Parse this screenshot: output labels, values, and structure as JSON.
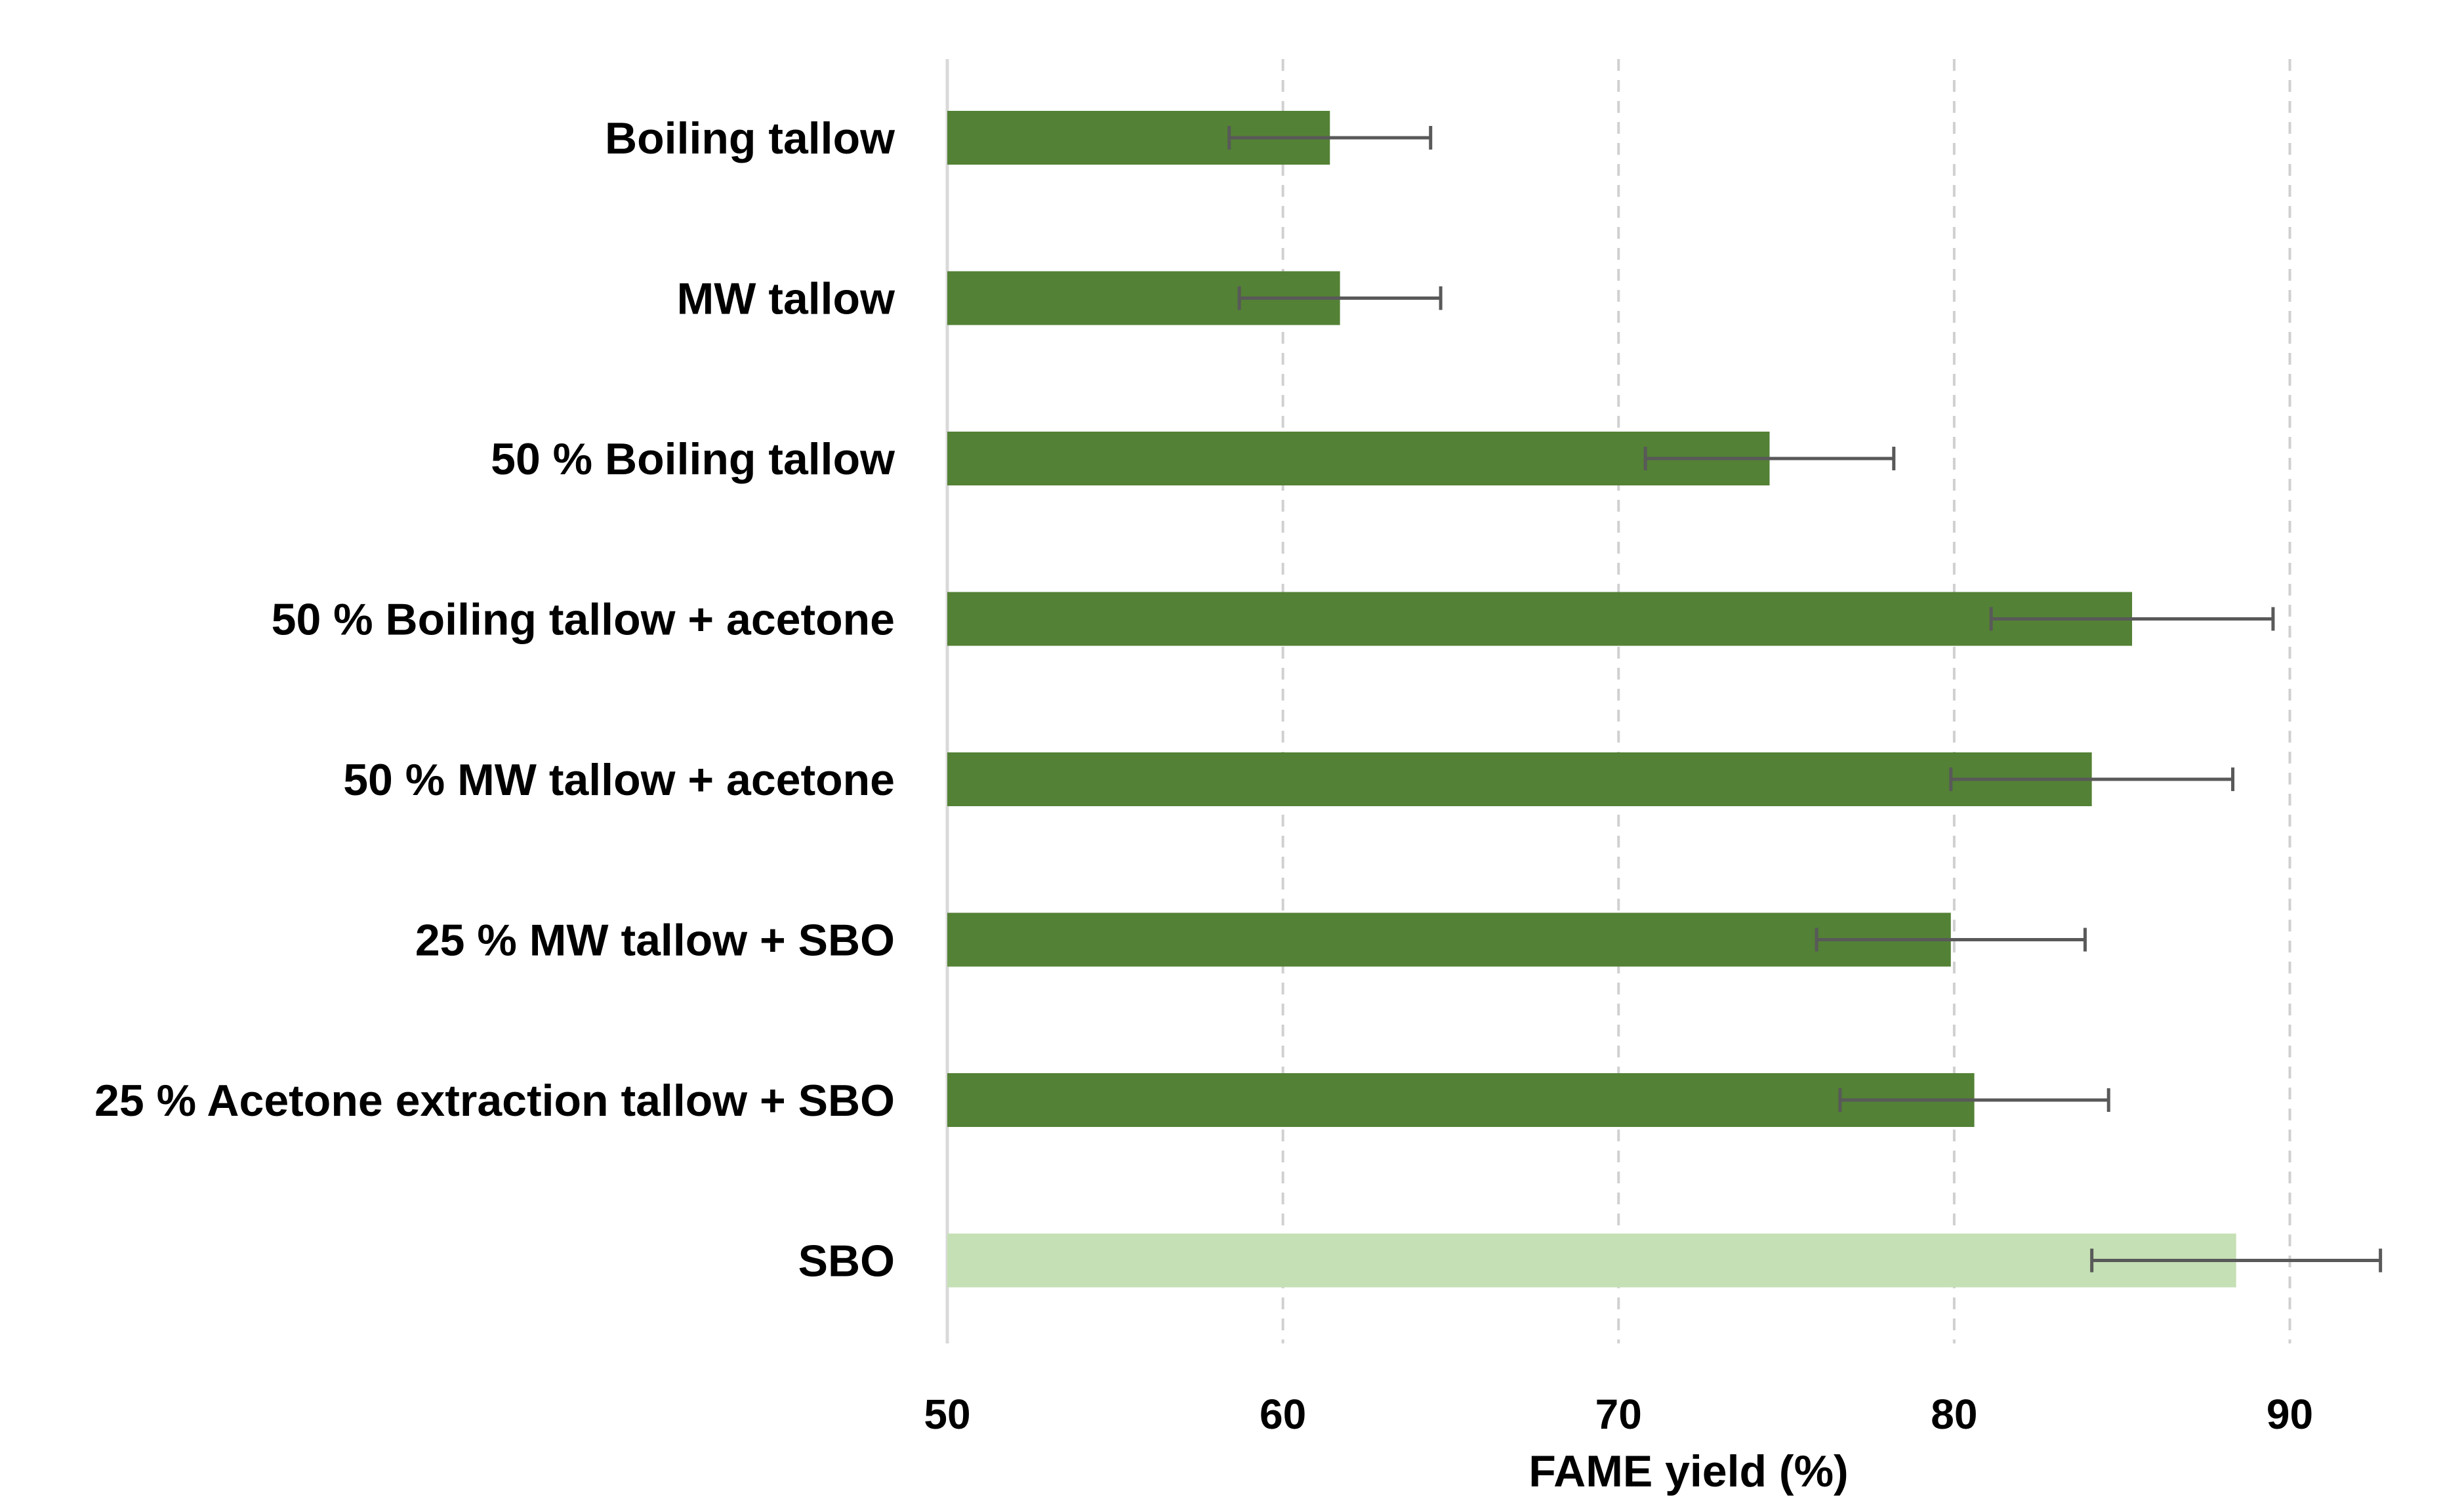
{
  "chart_data": {
    "type": "bar",
    "orientation": "horizontal",
    "categories": [
      "Boiling tallow",
      "MW tallow",
      "50 % Boiling tallow",
      "50 % Boiling tallow + acetone",
      "50 % MW tallow + acetone",
      "25 % MW tallow + SBO",
      "25 % Acetone extraction tallow + SBO",
      "SBO"
    ],
    "values": [
      61.4,
      61.7,
      74.5,
      85.3,
      84.1,
      79.9,
      80.6,
      88.4
    ],
    "error": [
      3.0,
      3.0,
      3.7,
      4.2,
      4.2,
      4.0,
      4.0,
      4.3
    ],
    "colors": [
      "#538135",
      "#538135",
      "#538135",
      "#538135",
      "#538135",
      "#538135",
      "#538135",
      "#c5e0b4"
    ],
    "error_color": "#595959",
    "xlim": [
      50,
      93
    ],
    "xticks": [
      "50",
      "60",
      "70",
      "80",
      "90"
    ],
    "xlabel": "FAME yield (%)",
    "ylabel": "",
    "title": "",
    "grid": "vertical dashed",
    "legend": "none"
  }
}
